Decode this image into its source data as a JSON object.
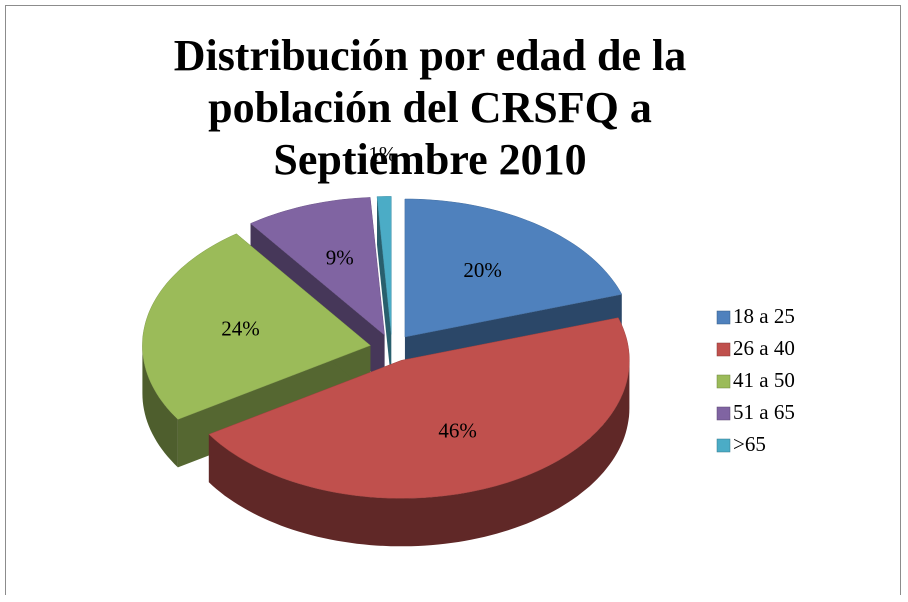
{
  "chart_data": {
    "type": "pie",
    "title": "Distribución por edad de la población del CRSFQ a Septiembre 2010",
    "categories": [
      "18 a 25",
      "26 a 40",
      "41 a 50",
      "51 a 65",
      ">65"
    ],
    "values": [
      20,
      46,
      24,
      9,
      1
    ],
    "value_labels": [
      "20%",
      "46%",
      "24%",
      "9%",
      "1%"
    ],
    "colors": [
      "#4f81bd",
      "#c0504d",
      "#9bbb59",
      "#8064a2",
      "#4bacc6"
    ],
    "legend": "right"
  }
}
